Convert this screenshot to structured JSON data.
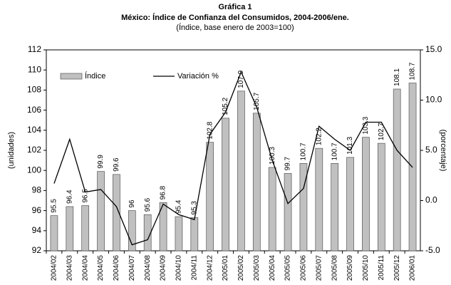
{
  "chart_data": {
    "type": "bar",
    "title": "Gráfica 1",
    "subtitle": "México: Índice de Confianza del Consumidos, 2004-2006/ene.",
    "note": "(Índice, base enero de 2003=100)",
    "ylabel": "(unidades)",
    "y2label": "(porcentaje)",
    "categories": [
      "2004/02",
      "2004/03",
      "2004/04",
      "2004/05",
      "2004/06",
      "2004/07",
      "2004/08",
      "2004/09",
      "2004/10",
      "2004/11",
      "2004/12",
      "2005/01",
      "2005/02",
      "2005/03",
      "2005/04",
      "2005/05",
      "2005/06",
      "2005/07",
      "2005/08",
      "2005/09",
      "2005/10",
      "2005/11",
      "2005/12",
      "2006/01"
    ],
    "series": [
      {
        "name": "Índice",
        "type": "bar",
        "color": "#c0c0c0",
        "values": [
          95.5,
          96.4,
          96.5,
          99.9,
          99.6,
          96,
          95.6,
          96.8,
          95.4,
          95.3,
          102.8,
          105.2,
          107.9,
          105.7,
          100.3,
          99.7,
          100.7,
          102.2,
          100.7,
          101.3,
          103.3,
          102.7,
          108.1,
          108.7
        ]
      },
      {
        "name": "Variación %",
        "type": "line",
        "color": "#000000",
        "axis": "y2",
        "values": [
          1.7,
          6.1,
          0.85,
          1.1,
          -0.6,
          -4.4,
          -3.9,
          -0.35,
          -1.4,
          -1.9,
          6.6,
          8.8,
          12.8,
          9.3,
          4.0,
          -0.3,
          1.2,
          7.4,
          6.1,
          5.0,
          7.8,
          7.8,
          5.0,
          3.3
        ]
      }
    ],
    "ylim": [
      92,
      112
    ],
    "yticks": [
      92,
      94,
      96,
      98,
      100,
      102,
      104,
      106,
      108,
      110,
      112
    ],
    "y2lim": [
      -5,
      15
    ],
    "y2ticks": [
      {
        "value": -5,
        "label": "-5.0"
      },
      {
        "value": 0,
        "label": "0.0"
      },
      {
        "value": 5,
        "label": "5.0"
      },
      {
        "value": 10,
        "label": "10.0"
      },
      {
        "value": 15,
        "label": "15.0"
      }
    ],
    "grid": false
  }
}
